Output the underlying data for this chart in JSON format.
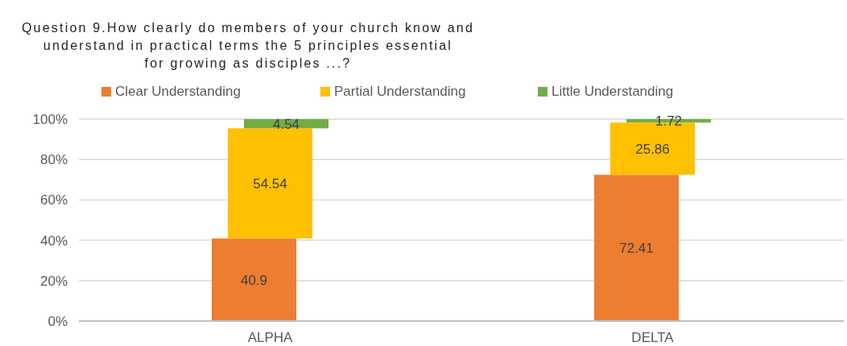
{
  "chart_data": {
    "type": "bar",
    "stacked": true,
    "title": "Question 9.How clearly do members of your church know and understand in practical terms the 5 principles essential for growing as disciples ...?",
    "categories": [
      "ALPHA",
      "DELTA"
    ],
    "series": [
      {
        "name": "Clear Understanding",
        "color": "#ed7d31",
        "values": [
          40.9,
          72.41
        ]
      },
      {
        "name": "Partial Understanding",
        "color": "#ffc000",
        "values": [
          54.54,
          25.86
        ]
      },
      {
        "name": "Little Understanding",
        "color": "#70ad47",
        "values": [
          4.54,
          1.72
        ]
      }
    ],
    "ylim": [
      0,
      100
    ],
    "yticks": [
      {
        "value": 0,
        "label": "0%"
      },
      {
        "value": 20,
        "label": "20%"
      },
      {
        "value": 40,
        "label": "40%"
      },
      {
        "value": 60,
        "label": "60%"
      },
      {
        "value": 80,
        "label": "80%"
      },
      {
        "value": 100,
        "label": "100%"
      }
    ],
    "grid": "y",
    "legend": "top",
    "data_labels": true
  }
}
